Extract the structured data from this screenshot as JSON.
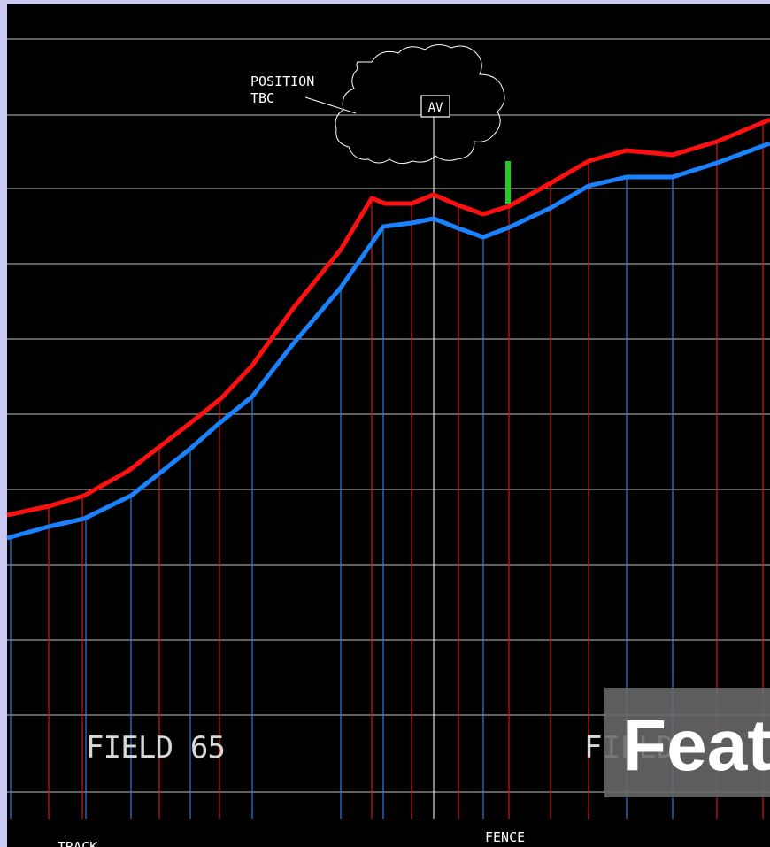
{
  "labels": {
    "position": "POSITION",
    "tbc": "TBC",
    "av": "AV",
    "field_left": "FIELD 65",
    "field_right": "FIELD",
    "track": "TRACK",
    "fence": "FENCE"
  },
  "overlay": {
    "text": "Feat"
  }
}
